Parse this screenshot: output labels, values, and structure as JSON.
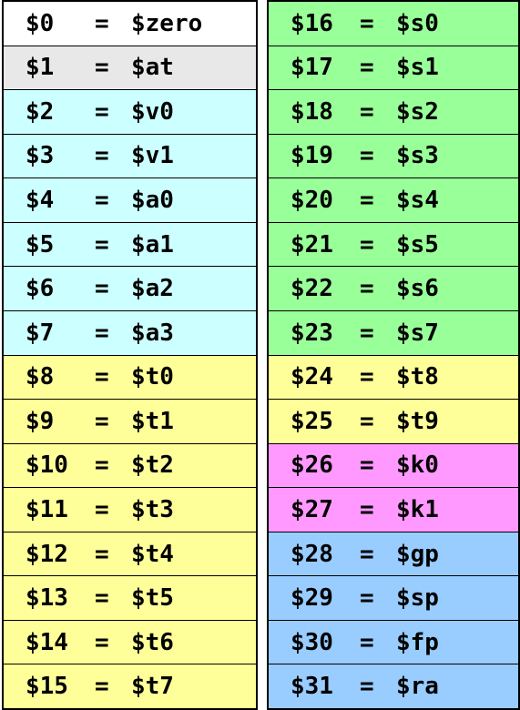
{
  "colors": {
    "zero": "#ffffff",
    "at": "#e8e8e8",
    "values_args": "#ccffff",
    "temps": "#ffff99",
    "saved": "#99ff99",
    "kernel": "#ff99ff",
    "pointers": "#99ccff"
  },
  "left_column": [
    {
      "num": "$0",
      "eq": "=",
      "name": "$zero",
      "color": "#ffffff"
    },
    {
      "num": "$1",
      "eq": "=",
      "name": "$at",
      "color": "#e8e8e8"
    },
    {
      "num": "$2",
      "eq": "=",
      "name": "$v0",
      "color": "#ccffff"
    },
    {
      "num": "$3",
      "eq": "=",
      "name": "$v1",
      "color": "#ccffff"
    },
    {
      "num": "$4",
      "eq": "=",
      "name": "$a0",
      "color": "#ccffff"
    },
    {
      "num": "$5",
      "eq": "=",
      "name": "$a1",
      "color": "#ccffff"
    },
    {
      "num": "$6",
      "eq": "=",
      "name": "$a2",
      "color": "#ccffff"
    },
    {
      "num": "$7",
      "eq": "=",
      "name": "$a3",
      "color": "#ccffff"
    },
    {
      "num": "$8",
      "eq": "=",
      "name": "$t0",
      "color": "#ffff99"
    },
    {
      "num": "$9",
      "eq": "=",
      "name": "$t1",
      "color": "#ffff99"
    },
    {
      "num": "$10",
      "eq": "=",
      "name": "$t2",
      "color": "#ffff99"
    },
    {
      "num": "$11",
      "eq": "=",
      "name": "$t3",
      "color": "#ffff99"
    },
    {
      "num": "$12",
      "eq": "=",
      "name": "$t4",
      "color": "#ffff99"
    },
    {
      "num": "$13",
      "eq": "=",
      "name": "$t5",
      "color": "#ffff99"
    },
    {
      "num": "$14",
      "eq": "=",
      "name": "$t6",
      "color": "#ffff99"
    },
    {
      "num": "$15",
      "eq": "=",
      "name": "$t7",
      "color": "#ffff99"
    }
  ],
  "right_column": [
    {
      "num": "$16",
      "eq": "=",
      "name": "$s0",
      "color": "#99ff99"
    },
    {
      "num": "$17",
      "eq": "=",
      "name": "$s1",
      "color": "#99ff99"
    },
    {
      "num": "$18",
      "eq": "=",
      "name": "$s2",
      "color": "#99ff99"
    },
    {
      "num": "$19",
      "eq": "=",
      "name": "$s3",
      "color": "#99ff99"
    },
    {
      "num": "$20",
      "eq": "=",
      "name": "$s4",
      "color": "#99ff99"
    },
    {
      "num": "$21",
      "eq": "=",
      "name": "$s5",
      "color": "#99ff99"
    },
    {
      "num": "$22",
      "eq": "=",
      "name": "$s6",
      "color": "#99ff99"
    },
    {
      "num": "$23",
      "eq": "=",
      "name": "$s7",
      "color": "#99ff99"
    },
    {
      "num": "$24",
      "eq": "=",
      "name": "$t8",
      "color": "#ffff99"
    },
    {
      "num": "$25",
      "eq": "=",
      "name": "$t9",
      "color": "#ffff99"
    },
    {
      "num": "$26",
      "eq": "=",
      "name": "$k0",
      "color": "#ff99ff"
    },
    {
      "num": "$27",
      "eq": "=",
      "name": "$k1",
      "color": "#ff99ff"
    },
    {
      "num": "$28",
      "eq": "=",
      "name": "$gp",
      "color": "#99ccff"
    },
    {
      "num": "$29",
      "eq": "=",
      "name": "$sp",
      "color": "#99ccff"
    },
    {
      "num": "$30",
      "eq": "=",
      "name": "$fp",
      "color": "#99ccff"
    },
    {
      "num": "$31",
      "eq": "=",
      "name": "$ra",
      "color": "#99ccff"
    }
  ]
}
